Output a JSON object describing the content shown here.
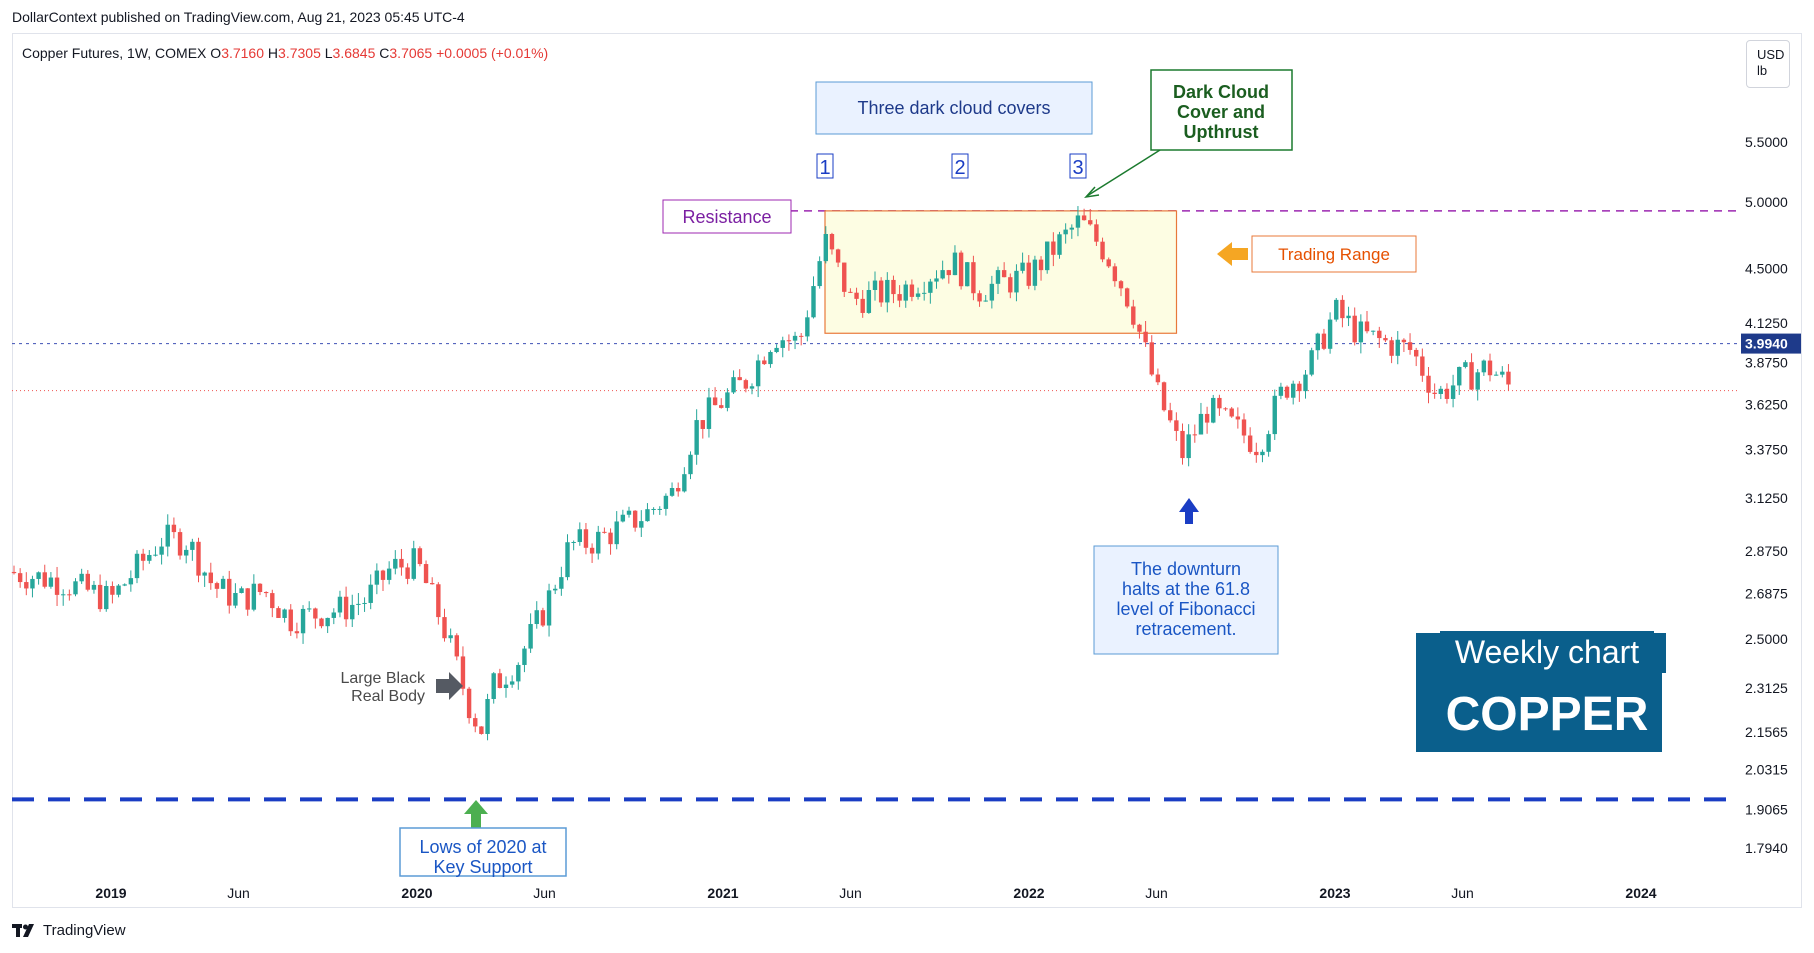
{
  "header": {
    "published": "DollarContext published on TradingView.com, Aug 21, 2023 05:45 UTC-4"
  },
  "legend": {
    "symbol": "Copper Futures, 1W, COMEX",
    "o_label": "O",
    "o": "3.7160",
    "h_label": "H",
    "h": "3.7305",
    "l_label": "L",
    "l": "3.6845",
    "c_label": "C",
    "c": "3.7065",
    "change": "+0.0005 (+0.01%)"
  },
  "currency": {
    "line1": "USD",
    "line2": "lb"
  },
  "footer": {
    "brand": "TradingView"
  },
  "colors": {
    "up": "#26a69a",
    "down": "#ef5350",
    "blue_label": "#1e3a8a",
    "support": "#1a3dc4",
    "resistance": "#9c27b0",
    "range": "#e8793a",
    "range_fill": "#fdfde3",
    "brand": "#0a5f8c"
  },
  "chart_data": {
    "type": "candlestick",
    "timeframe": "1W",
    "x_ticks": [
      "2019",
      "Jun",
      "2020",
      "Jun",
      "2021",
      "Jun",
      "2022",
      "Jun",
      "2023",
      "Jun",
      "2024"
    ],
    "y_ticks": [
      "5.5000",
      "5.0000",
      "4.5000",
      "4.1250",
      "3.8750",
      "3.6250",
      "3.3750",
      "3.1250",
      "2.8750",
      "2.6875",
      "2.5000",
      "2.3125",
      "2.1565",
      "2.0315",
      "1.9065",
      "1.7940"
    ],
    "ylim": [
      1.74,
      5.9
    ],
    "scale": "log",
    "price_line": {
      "value": "3.9940",
      "y": 3.994
    },
    "last_price": 3.7065,
    "support_level": 1.938,
    "resistance_level": 4.93,
    "trading_range": {
      "low": 4.06,
      "high": 4.93,
      "start": "2021-05",
      "end": "2022-06"
    },
    "path_points": [
      {
        "t": "2018-09",
        "y": 2.78
      },
      {
        "t": "2018-11",
        "y": 2.74
      },
      {
        "t": "2019-01",
        "y": 2.66
      },
      {
        "t": "2019-03",
        "y": 2.93
      },
      {
        "t": "2019-04",
        "y": 2.92
      },
      {
        "t": "2019-05",
        "y": 2.72
      },
      {
        "t": "2019-06",
        "y": 2.66
      },
      {
        "t": "2019-07",
        "y": 2.7
      },
      {
        "t": "2019-08",
        "y": 2.58
      },
      {
        "t": "2019-10",
        "y": 2.62
      },
      {
        "t": "2019-11",
        "y": 2.66
      },
      {
        "t": "2019-12",
        "y": 2.8
      },
      {
        "t": "2020-01",
        "y": 2.82
      },
      {
        "t": "2020-02",
        "y": 2.56
      },
      {
        "t": "2020-03",
        "y": 2.26
      },
      {
        "t": "2020-03b",
        "y": 2.16
      },
      {
        "t": "2020-04",
        "y": 2.32
      },
      {
        "t": "2020-05",
        "y": 2.42
      },
      {
        "t": "2020-06",
        "y": 2.62
      },
      {
        "t": "2020-07",
        "y": 2.9
      },
      {
        "t": "2020-08",
        "y": 2.92
      },
      {
        "t": "2020-10",
        "y": 3.05
      },
      {
        "t": "2020-11",
        "y": 3.15
      },
      {
        "t": "2020-12",
        "y": 3.52
      },
      {
        "t": "2021-02",
        "y": 3.78
      },
      {
        "t": "2021-03",
        "y": 4.05
      },
      {
        "t": "2021-04",
        "y": 4.0
      },
      {
        "t": "2021-05",
        "y": 4.7
      },
      {
        "t": "2021-06",
        "y": 4.28
      },
      {
        "t": "2021-08",
        "y": 4.35
      },
      {
        "t": "2021-10",
        "y": 4.55
      },
      {
        "t": "2021-11",
        "y": 4.35
      },
      {
        "t": "2022-01",
        "y": 4.45
      },
      {
        "t": "2022-03",
        "y": 4.85
      },
      {
        "t": "2022-04",
        "y": 4.62
      },
      {
        "t": "2022-05",
        "y": 4.25
      },
      {
        "t": "2022-06",
        "y": 3.7
      },
      {
        "t": "2022-07",
        "y": 3.35
      },
      {
        "t": "2022-08",
        "y": 3.6
      },
      {
        "t": "2022-10",
        "y": 3.4
      },
      {
        "t": "2022-11",
        "y": 3.72
      },
      {
        "t": "2022-12",
        "y": 3.85
      },
      {
        "t": "2023-01",
        "y": 4.2
      },
      {
        "t": "2023-02",
        "y": 4.05
      },
      {
        "t": "2023-03",
        "y": 4.0
      },
      {
        "t": "2023-04",
        "y": 3.95
      },
      {
        "t": "2023-05",
        "y": 3.68
      },
      {
        "t": "2023-06",
        "y": 3.78
      },
      {
        "t": "2023-07",
        "y": 3.85
      },
      {
        "t": "2023-08",
        "y": 3.7065
      }
    ],
    "annotations": {
      "three_covers": "Three dark cloud covers",
      "marker_1": "1",
      "marker_2": "2",
      "marker_3": "3",
      "dark_cloud": [
        "Dark Cloud",
        "Cover and",
        "Upthrust"
      ],
      "resistance": "Resistance",
      "trading_range": "Trading Range",
      "fib": [
        "The downturn",
        "halts at the 61.8",
        "level of Fibonacci",
        "retracement."
      ],
      "black_body": [
        "Large Black",
        "Real Body"
      ],
      "lows": [
        "Lows of 2020 at",
        "Key Support"
      ],
      "weekly": "Weekly chart",
      "copper": "COPPER"
    }
  }
}
